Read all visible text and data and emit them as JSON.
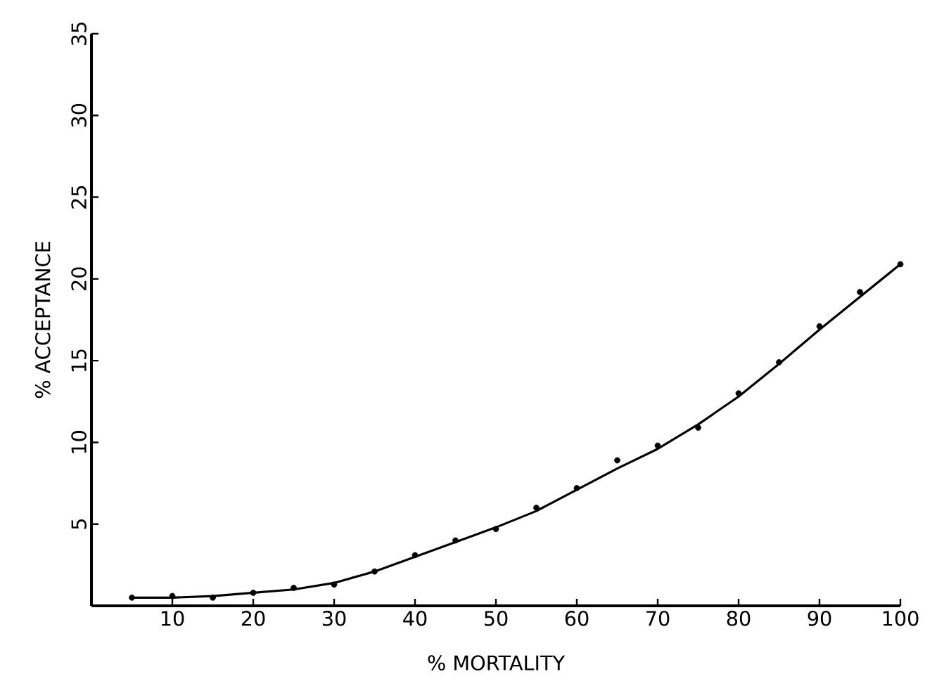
{
  "chart_data": {
    "type": "scatter",
    "xlabel": "% MORTALITY",
    "ylabel": "% ACCEPTANCE",
    "xlim": [
      0,
      100
    ],
    "ylim": [
      0,
      35
    ],
    "xticks": [
      10,
      20,
      30,
      40,
      50,
      60,
      70,
      80,
      90,
      100
    ],
    "yticks": [
      5,
      10,
      15,
      20,
      25,
      30,
      35
    ],
    "grid": false,
    "series": [
      {
        "marker": "circle",
        "color": "#000000",
        "x": [
          5,
          10,
          15,
          20,
          25,
          30,
          35,
          40,
          45,
          50,
          55,
          60,
          65,
          70,
          75,
          80,
          85,
          90,
          95,
          100
        ],
        "values": [
          0.5,
          0.6,
          0.5,
          0.8,
          1.1,
          1.3,
          2.1,
          3.1,
          4.0,
          4.7,
          6.0,
          7.2,
          8.9,
          9.8,
          10.9,
          13.0,
          14.9,
          17.1,
          19.2,
          20.9
        ]
      },
      {
        "type": "line",
        "marker": "none",
        "line_style": "solid",
        "color": "#000000",
        "x": [
          5,
          10,
          15,
          20,
          25,
          30,
          35,
          40,
          45,
          50,
          55,
          60,
          65,
          70,
          75,
          80,
          85,
          90,
          95,
          100
        ],
        "values": [
          0.5,
          0.5,
          0.6,
          0.8,
          1.0,
          1.4,
          2.1,
          3.0,
          3.9,
          4.8,
          5.8,
          7.1,
          8.4,
          9.6,
          11.1,
          12.8,
          14.8,
          16.9,
          18.9,
          20.9
        ]
      }
    ]
  }
}
